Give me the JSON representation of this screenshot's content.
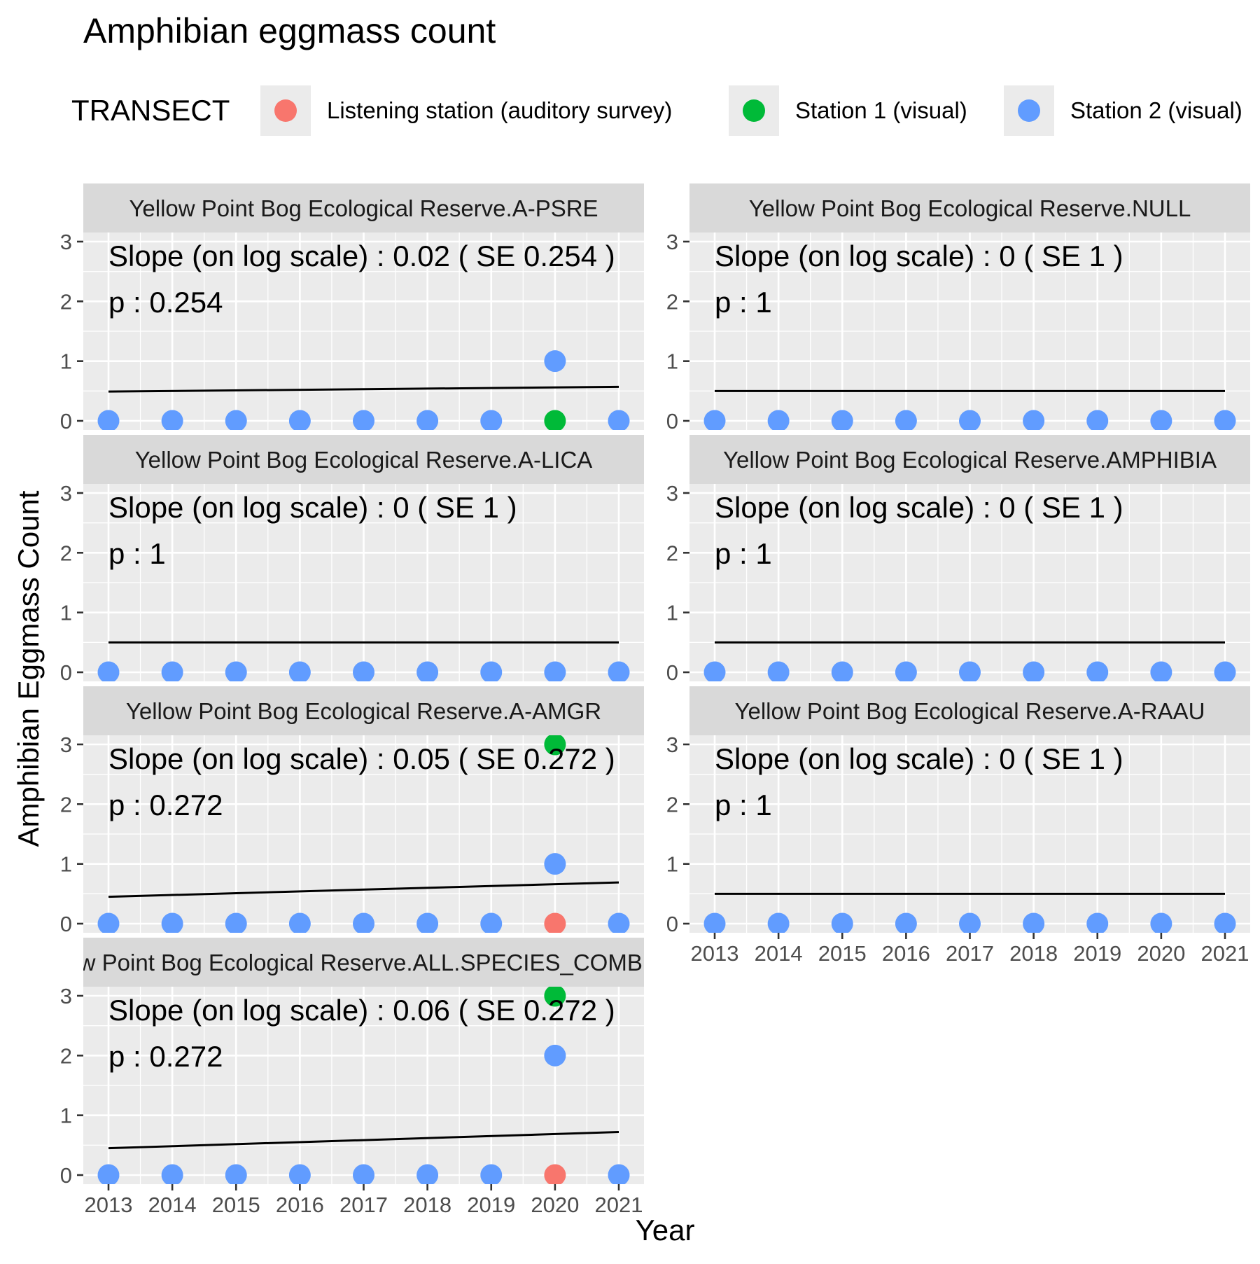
{
  "title": "Amphibian eggmass count",
  "legend": {
    "title": "TRANSECT",
    "position": "top",
    "items": [
      {
        "label": "Listening station (auditory survey)",
        "color": "#F8766D"
      },
      {
        "label": "Station 1 (visual)",
        "color": "#00BA38"
      },
      {
        "label": "Station 2 (visual)",
        "color": "#619CFF"
      }
    ]
  },
  "chart_data": {
    "type": "scatter",
    "facet_layout": "wrap, 2 columns",
    "xlabel": "Year",
    "ylabel": "Amphibian Eggmass Count",
    "x_ticks": [
      2013,
      2014,
      2015,
      2016,
      2017,
      2018,
      2019,
      2020,
      2021
    ],
    "y_ticks": [
      0,
      1,
      2,
      3
    ],
    "xlim": [
      2013,
      2021
    ],
    "ylim": [
      0,
      3
    ],
    "grid": true,
    "panels": [
      {
        "strip": "Yellow Point Bog Ecological Reserve.A-PSRE",
        "slope_text": "Slope (on log scale) :  0.02  ( SE  0.254 )",
        "p_text": "p : 0.254",
        "trend": {
          "x": [
            2013,
            2021
          ],
          "y": [
            0.49,
            0.57
          ]
        },
        "points": [
          {
            "x": 2020,
            "y": 0,
            "transect": "Station 1 (visual)"
          },
          {
            "x": 2013,
            "y": 0,
            "transect": "Station 2 (visual)"
          },
          {
            "x": 2014,
            "y": 0,
            "transect": "Station 2 (visual)"
          },
          {
            "x": 2015,
            "y": 0,
            "transect": "Station 2 (visual)"
          },
          {
            "x": 2016,
            "y": 0,
            "transect": "Station 2 (visual)"
          },
          {
            "x": 2017,
            "y": 0,
            "transect": "Station 2 (visual)"
          },
          {
            "x": 2018,
            "y": 0,
            "transect": "Station 2 (visual)"
          },
          {
            "x": 2019,
            "y": 0,
            "transect": "Station 2 (visual)"
          },
          {
            "x": 2020,
            "y": 1,
            "transect": "Station 2 (visual)"
          },
          {
            "x": 2021,
            "y": 0,
            "transect": "Station 2 (visual)"
          }
        ]
      },
      {
        "strip": "Yellow Point Bog Ecological Reserve.NULL",
        "slope_text": "Slope (on log scale) :  0  ( SE  1 )",
        "p_text": "p : 1",
        "trend": {
          "x": [
            2013,
            2021
          ],
          "y": [
            0.5,
            0.5
          ]
        },
        "points": [
          {
            "x": 2013,
            "y": 0,
            "transect": "Station 2 (visual)"
          },
          {
            "x": 2014,
            "y": 0,
            "transect": "Station 2 (visual)"
          },
          {
            "x": 2015,
            "y": 0,
            "transect": "Station 2 (visual)"
          },
          {
            "x": 2016,
            "y": 0,
            "transect": "Station 2 (visual)"
          },
          {
            "x": 2017,
            "y": 0,
            "transect": "Station 2 (visual)"
          },
          {
            "x": 2018,
            "y": 0,
            "transect": "Station 2 (visual)"
          },
          {
            "x": 2019,
            "y": 0,
            "transect": "Station 2 (visual)"
          },
          {
            "x": 2020,
            "y": 0,
            "transect": "Station 2 (visual)"
          },
          {
            "x": 2021,
            "y": 0,
            "transect": "Station 2 (visual)"
          }
        ]
      },
      {
        "strip": "Yellow Point Bog Ecological Reserve.A-LICA",
        "slope_text": "Slope (on log scale) :  0  ( SE  1 )",
        "p_text": "p : 1",
        "trend": {
          "x": [
            2013,
            2021
          ],
          "y": [
            0.5,
            0.5
          ]
        },
        "points": [
          {
            "x": 2013,
            "y": 0,
            "transect": "Station 2 (visual)"
          },
          {
            "x": 2014,
            "y": 0,
            "transect": "Station 2 (visual)"
          },
          {
            "x": 2015,
            "y": 0,
            "transect": "Station 2 (visual)"
          },
          {
            "x": 2016,
            "y": 0,
            "transect": "Station 2 (visual)"
          },
          {
            "x": 2017,
            "y": 0,
            "transect": "Station 2 (visual)"
          },
          {
            "x": 2018,
            "y": 0,
            "transect": "Station 2 (visual)"
          },
          {
            "x": 2019,
            "y": 0,
            "transect": "Station 2 (visual)"
          },
          {
            "x": 2020,
            "y": 0,
            "transect": "Station 2 (visual)"
          },
          {
            "x": 2021,
            "y": 0,
            "transect": "Station 2 (visual)"
          }
        ]
      },
      {
        "strip": "Yellow Point Bog Ecological Reserve.AMPHIBIA",
        "slope_text": "Slope (on log scale) :  0  ( SE  1 )",
        "p_text": "p : 1",
        "trend": {
          "x": [
            2013,
            2021
          ],
          "y": [
            0.5,
            0.5
          ]
        },
        "points": [
          {
            "x": 2013,
            "y": 0,
            "transect": "Station 2 (visual)"
          },
          {
            "x": 2014,
            "y": 0,
            "transect": "Station 2 (visual)"
          },
          {
            "x": 2015,
            "y": 0,
            "transect": "Station 2 (visual)"
          },
          {
            "x": 2016,
            "y": 0,
            "transect": "Station 2 (visual)"
          },
          {
            "x": 2017,
            "y": 0,
            "transect": "Station 2 (visual)"
          },
          {
            "x": 2018,
            "y": 0,
            "transect": "Station 2 (visual)"
          },
          {
            "x": 2019,
            "y": 0,
            "transect": "Station 2 (visual)"
          },
          {
            "x": 2020,
            "y": 0,
            "transect": "Station 2 (visual)"
          },
          {
            "x": 2021,
            "y": 0,
            "transect": "Station 2 (visual)"
          }
        ]
      },
      {
        "strip": "Yellow Point Bog Ecological Reserve.A-AMGR",
        "slope_text": "Slope (on log scale) :  0.05  ( SE  0.272 )",
        "p_text": "p : 0.272",
        "trend": {
          "x": [
            2013,
            2021
          ],
          "y": [
            0.45,
            0.69
          ]
        },
        "points": [
          {
            "x": 2020,
            "y": 0,
            "transect": "Listening station (auditory survey)"
          },
          {
            "x": 2020,
            "y": 3,
            "transect": "Station 1 (visual)"
          },
          {
            "x": 2013,
            "y": 0,
            "transect": "Station 2 (visual)"
          },
          {
            "x": 2014,
            "y": 0,
            "transect": "Station 2 (visual)"
          },
          {
            "x": 2015,
            "y": 0,
            "transect": "Station 2 (visual)"
          },
          {
            "x": 2016,
            "y": 0,
            "transect": "Station 2 (visual)"
          },
          {
            "x": 2017,
            "y": 0,
            "transect": "Station 2 (visual)"
          },
          {
            "x": 2018,
            "y": 0,
            "transect": "Station 2 (visual)"
          },
          {
            "x": 2019,
            "y": 0,
            "transect": "Station 2 (visual)"
          },
          {
            "x": 2020,
            "y": 1,
            "transect": "Station 2 (visual)"
          },
          {
            "x": 2021,
            "y": 0,
            "transect": "Station 2 (visual)"
          }
        ]
      },
      {
        "strip": "Yellow Point Bog Ecological Reserve.A-RAAU",
        "slope_text": "Slope (on log scale) :  0  ( SE  1 )",
        "p_text": "p : 1",
        "trend": {
          "x": [
            2013,
            2021
          ],
          "y": [
            0.5,
            0.5
          ]
        },
        "points": [
          {
            "x": 2013,
            "y": 0,
            "transect": "Station 2 (visual)"
          },
          {
            "x": 2014,
            "y": 0,
            "transect": "Station 2 (visual)"
          },
          {
            "x": 2015,
            "y": 0,
            "transect": "Station 2 (visual)"
          },
          {
            "x": 2016,
            "y": 0,
            "transect": "Station 2 (visual)"
          },
          {
            "x": 2017,
            "y": 0,
            "transect": "Station 2 (visual)"
          },
          {
            "x": 2018,
            "y": 0,
            "transect": "Station 2 (visual)"
          },
          {
            "x": 2019,
            "y": 0,
            "transect": "Station 2 (visual)"
          },
          {
            "x": 2020,
            "y": 0,
            "transect": "Station 2 (visual)"
          },
          {
            "x": 2021,
            "y": 0,
            "transect": "Station 2 (visual)"
          }
        ]
      },
      {
        "strip": "Yellow Point Bog Ecological Reserve.ALL.SPECIES_COMBINED",
        "slope_text": "Slope (on log scale) :  0.06  ( SE  0.272 )",
        "p_text": "p : 0.272",
        "trend": {
          "x": [
            2013,
            2021
          ],
          "y": [
            0.45,
            0.72
          ]
        },
        "points": [
          {
            "x": 2020,
            "y": 0,
            "transect": "Listening station (auditory survey)"
          },
          {
            "x": 2020,
            "y": 3,
            "transect": "Station 1 (visual)"
          },
          {
            "x": 2013,
            "y": 0,
            "transect": "Station 2 (visual)"
          },
          {
            "x": 2014,
            "y": 0,
            "transect": "Station 2 (visual)"
          },
          {
            "x": 2015,
            "y": 0,
            "transect": "Station 2 (visual)"
          },
          {
            "x": 2016,
            "y": 0,
            "transect": "Station 2 (visual)"
          },
          {
            "x": 2017,
            "y": 0,
            "transect": "Station 2 (visual)"
          },
          {
            "x": 2018,
            "y": 0,
            "transect": "Station 2 (visual)"
          },
          {
            "x": 2019,
            "y": 0,
            "transect": "Station 2 (visual)"
          },
          {
            "x": 2020,
            "y": 2,
            "transect": "Station 2 (visual)"
          },
          {
            "x": 2021,
            "y": 0,
            "transect": "Station 2 (visual)"
          }
        ]
      }
    ]
  }
}
